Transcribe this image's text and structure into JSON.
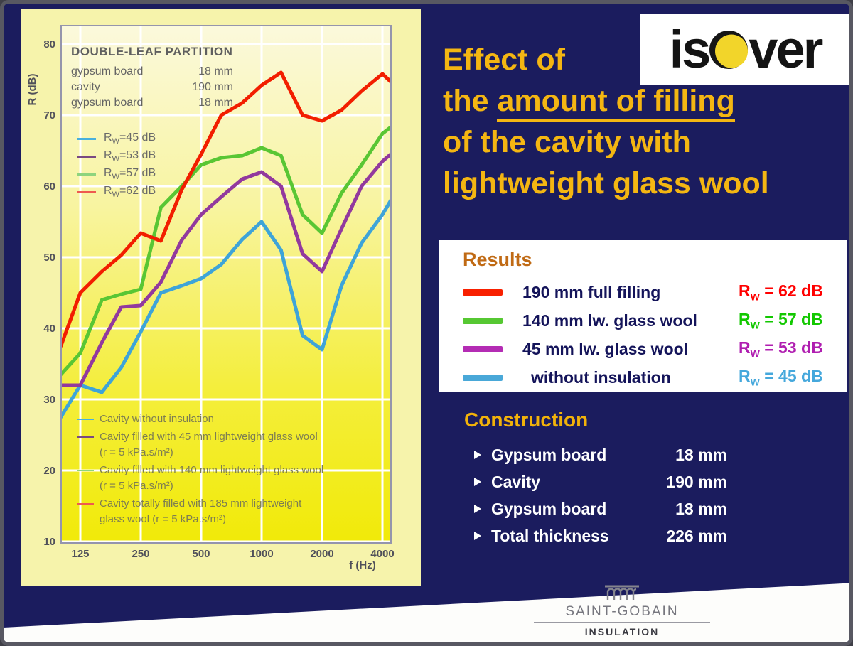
{
  "logo": {
    "left": "is",
    "right": "ver"
  },
  "title": {
    "line1": "Effect of",
    "line2_prefix": "the ",
    "line2_underline": "amount of filling",
    "line3": "of the cavity with",
    "line4": "lightweight glass wool"
  },
  "results": {
    "heading": "Results",
    "rows": [
      {
        "label": "190 mm full filling",
        "swatch": "#f82000",
        "rw_prefix": "R",
        "rw_sub": "W",
        "value": "= 62 dB",
        "color": "#ff0000"
      },
      {
        "label": "140 mm lw. glass wool",
        "swatch": "#56c832",
        "rw_prefix": "R",
        "rw_sub": "W",
        "value": "= 57 dB",
        "color": "#12c800"
      },
      {
        "label": "45 mm lw. glass wool",
        "swatch": "#b42cb4",
        "rw_prefix": "R",
        "rw_sub": "W",
        "value": "= 53 dB",
        "color": "#b01eb0"
      },
      {
        "label": "without insulation",
        "swatch": "#49a8d8",
        "rw_prefix": "R",
        "rw_sub": "W",
        "value": "= 45 dB",
        "color": "#45a8dc"
      }
    ]
  },
  "construction": {
    "heading": "Construction",
    "items": [
      {
        "label": "Gypsum board",
        "value": "18 mm"
      },
      {
        "label": "Cavity",
        "value": "190 mm"
      },
      {
        "label": "Gypsum board",
        "value": "18 mm"
      },
      {
        "label": "Total thickness",
        "value": "226 mm"
      }
    ]
  },
  "footer": {
    "brand": "SAINT-GOBAIN",
    "division": "INSULATION"
  },
  "chart_data": {
    "type": "line",
    "title": "DOUBLE-LEAF PARTITION",
    "spec_rows": [
      [
        "gypsum board",
        "18 mm"
      ],
      [
        "cavity",
        "190 mm"
      ],
      [
        "gypsum board",
        "18 mm"
      ]
    ],
    "xlabel": "f (Hz)",
    "ylabel": "R (dB)",
    "xlim": [
      100,
      4400
    ],
    "ylim": [
      10,
      80
    ],
    "x_ticks": [
      125,
      250,
      500,
      1000,
      2000,
      4000
    ],
    "y_ticks": [
      10,
      20,
      30,
      40,
      50,
      60,
      70,
      80
    ],
    "grid": true,
    "legend_position": "top-left and bottom-left inside plot",
    "x": [
      100,
      125,
      160,
      200,
      250,
      315,
      400,
      500,
      630,
      800,
      1000,
      1250,
      1600,
      2000,
      2500,
      3150,
      4000,
      4400
    ],
    "series": [
      {
        "id": "without-insulation",
        "rw": "45 dB",
        "color": "#3ea4d8",
        "legend_color": "#49b0dd",
        "legend_lines": [
          "Cavity without insulation"
        ],
        "values": [
          27.5,
          32,
          31,
          34.5,
          39.5,
          45,
          46,
          47,
          49,
          52.5,
          55,
          51,
          39,
          37,
          46,
          52,
          56,
          58
        ]
      },
      {
        "id": "45mm-glass-wool",
        "rw": "53 dB",
        "color": "#92399e",
        "legend_color": "#7a4a82",
        "legend_lines": [
          "Cavity filled with 45 mm lightweight glass wool",
          "(r = 5 kPa.s/m²)"
        ],
        "values": [
          32,
          32,
          38,
          43,
          43.2,
          46.5,
          52.4,
          56,
          58.5,
          61,
          62,
          60,
          50.5,
          48,
          54,
          60,
          63.5,
          64.5
        ]
      },
      {
        "id": "140mm-glass-wool",
        "rw": "57 dB",
        "color": "#59c634",
        "legend_color": "#8ed47e",
        "legend_lines": [
          "Cavity filled with 140 mm lightweight glass wool",
          "(r = 5 kPa.s/m²)"
        ],
        "values": [
          33.5,
          36.5,
          44,
          44.8,
          45.5,
          57,
          60,
          63,
          64,
          64.3,
          65.4,
          64.3,
          56,
          53.4,
          59,
          63,
          67.4,
          68.3
        ]
      },
      {
        "id": "full-filling-185mm",
        "rw": "62 dB",
        "color": "#f21e00",
        "legend_color": "#ee5a50",
        "legend_lines": [
          "Cavity totally filled with 185 mm lightweight",
          "glass wool (r = 5 kPa.s/m²)"
        ],
        "values": [
          37.5,
          45,
          48,
          50.3,
          53.4,
          52.3,
          59.5,
          64.5,
          70,
          71.7,
          74.2,
          76,
          70,
          69.2,
          70.7,
          73.4,
          75.8,
          74.7
        ]
      }
    ]
  }
}
